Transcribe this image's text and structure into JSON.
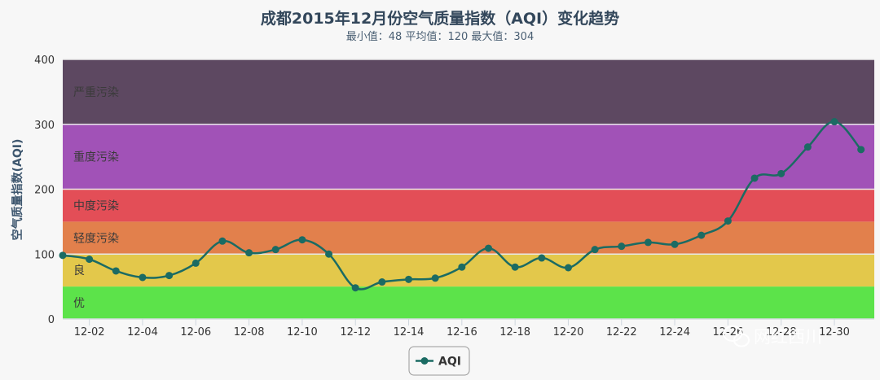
{
  "chart_data": {
    "type": "line",
    "title": "成都2015年12月份空气质量指数（AQI）变化趋势",
    "subtitle": "最小值：48 平均值：120 最大值：304",
    "ylabel": "空气质量指数(AQI)",
    "ylim": [
      0,
      400
    ],
    "yticks": [
      "0",
      "100",
      "200",
      "300",
      "400"
    ],
    "xlim": [
      1,
      31.5
    ],
    "xticks": [
      {
        "day": 2,
        "label": "12-02"
      },
      {
        "day": 4,
        "label": "12-04"
      },
      {
        "day": 6,
        "label": "12-06"
      },
      {
        "day": 8,
        "label": "12-08"
      },
      {
        "day": 10,
        "label": "12-10"
      },
      {
        "day": 12,
        "label": "12-12"
      },
      {
        "day": 14,
        "label": "12-14"
      },
      {
        "day": 16,
        "label": "12-16"
      },
      {
        "day": 18,
        "label": "12-18"
      },
      {
        "day": 20,
        "label": "12-20"
      },
      {
        "day": 22,
        "label": "12-22"
      },
      {
        "day": 24,
        "label": "12-24"
      },
      {
        "day": 26,
        "label": "12-26"
      },
      {
        "day": 28,
        "label": "12-28"
      },
      {
        "day": 30,
        "label": "12-30"
      }
    ],
    "grid": true,
    "legend_position": "bottom-center",
    "bands": [
      {
        "from": 0,
        "to": 50,
        "label": "优",
        "color": "#5ce34a"
      },
      {
        "from": 50,
        "to": 100,
        "label": "良",
        "color": "#e3c84b"
      },
      {
        "from": 100,
        "to": 150,
        "label": "轻度污染",
        "color": "#e2804c"
      },
      {
        "from": 150,
        "to": 200,
        "label": "中度污染",
        "color": "#e34e57"
      },
      {
        "from": 200,
        "to": 300,
        "label": "重度污染",
        "color": "#a152b7"
      },
      {
        "from": 300,
        "to": 400,
        "label": "严重污染",
        "color": "#5d4861"
      }
    ],
    "series": [
      {
        "name": "AQI",
        "color": "#1b6b63",
        "x": [
          1,
          2,
          3,
          4,
          5,
          6,
          7,
          8,
          9,
          10,
          11,
          12,
          13,
          14,
          15,
          16,
          17,
          18,
          19,
          20,
          21,
          22,
          23,
          24,
          25,
          26,
          27,
          28,
          29,
          30,
          31
        ],
        "values": [
          98,
          92,
          74,
          64,
          67,
          86,
          120,
          102,
          107,
          122,
          100,
          48,
          57,
          61,
          63,
          80,
          109,
          80,
          94,
          79,
          107,
          112,
          118,
          115,
          129,
          151,
          217,
          224,
          265,
          304,
          261
        ]
      }
    ]
  },
  "watermark": {
    "text": "网红西川",
    "icon": "wechat-icon"
  }
}
